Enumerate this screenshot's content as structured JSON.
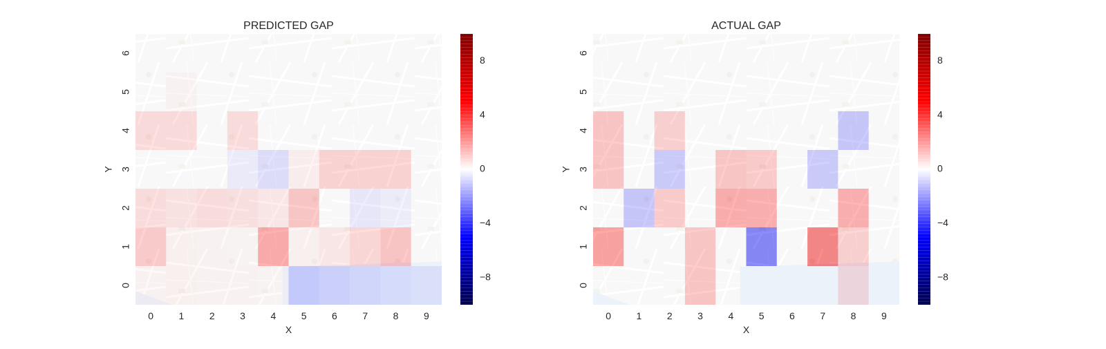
{
  "chart_data": [
    {
      "type": "heatmap",
      "title": "PREDICTED GAP",
      "xlabel": "X",
      "ylabel": "Y",
      "x_ticks": [
        "0",
        "1",
        "2",
        "3",
        "4",
        "5",
        "6",
        "7",
        "8",
        "9"
      ],
      "y_ticks": [
        "0",
        "1",
        "2",
        "3",
        "4",
        "5",
        "6"
      ],
      "grid": false,
      "background": "street map of Porto (muted)",
      "colorbar": {
        "range": [
          -10,
          10
        ],
        "ticks": [
          -8,
          -4,
          0,
          4,
          8
        ],
        "tick_labels": [
          "−8",
          "−4",
          "0",
          "4",
          "8"
        ],
        "colormap": "seismic"
      },
      "values": [
        [
          0.3,
          0.4,
          0.3,
          0.3,
          0.2,
          -1.8,
          -1.5,
          -1.2,
          -1.0,
          -0.8
        ],
        [
          2.0,
          0.4,
          0.3,
          0.2,
          3.4,
          0.4,
          0.8,
          1.5,
          2.3,
          0.0
        ],
        [
          1.2,
          1.0,
          1.2,
          1.1,
          0.8,
          2.2,
          0.0,
          -0.8,
          -0.5,
          0.0
        ],
        [
          0.0,
          0.0,
          0.0,
          -0.6,
          -1.2,
          0.5,
          1.7,
          1.7,
          1.7,
          0.0
        ],
        [
          1.3,
          1.3,
          0.0,
          1.2,
          0.0,
          0.0,
          0.0,
          0.0,
          0.0,
          0.0
        ],
        [
          0.0,
          0.3,
          0.0,
          0.0,
          0.0,
          0.0,
          0.0,
          0.0,
          0.0,
          0.0
        ],
        [
          0.0,
          0.0,
          0.0,
          0.0,
          0.0,
          0.0,
          0.0,
          0.0,
          0.0,
          0.0
        ]
      ]
    },
    {
      "type": "heatmap",
      "title": "ACTUAL GAP",
      "xlabel": "X",
      "ylabel": "Y",
      "x_ticks": [
        "0",
        "1",
        "2",
        "3",
        "4",
        "5",
        "6",
        "7",
        "8",
        "9"
      ],
      "y_ticks": [
        "0",
        "1",
        "2",
        "3",
        "4",
        "5",
        "6"
      ],
      "grid": false,
      "background": "street map of Porto (muted)",
      "colorbar": {
        "range": [
          -10,
          10
        ],
        "ticks": [
          -8,
          -4,
          0,
          4,
          8
        ],
        "tick_labels": [
          "−8",
          "−4",
          "0",
          "4",
          "8"
        ],
        "colormap": "seismic"
      },
      "values": [
        [
          0.0,
          0.0,
          0.0,
          2.3,
          0.0,
          0.0,
          0.0,
          0.0,
          1.3,
          0.0
        ],
        [
          3.8,
          0.0,
          0.0,
          2.2,
          0.0,
          -5.3,
          0.0,
          5.5,
          1.8,
          0.0
        ],
        [
          0.0,
          -2.2,
          2.0,
          0.0,
          3.3,
          3.2,
          0.0,
          0.0,
          3.2,
          0.0
        ],
        [
          2.3,
          0.0,
          -2.0,
          0.0,
          2.2,
          2.0,
          0.0,
          -2.0,
          0.0,
          0.0
        ],
        [
          2.3,
          0.0,
          1.8,
          0.0,
          0.0,
          0.0,
          0.0,
          0.0,
          -2.2,
          0.0
        ],
        [
          0.0,
          0.0,
          0.0,
          0.0,
          0.0,
          0.0,
          0.0,
          0.0,
          0.0,
          0.0
        ],
        [
          0.0,
          0.0,
          0.0,
          0.0,
          0.0,
          0.0,
          0.0,
          0.0,
          0.0,
          0.0
        ]
      ]
    }
  ]
}
